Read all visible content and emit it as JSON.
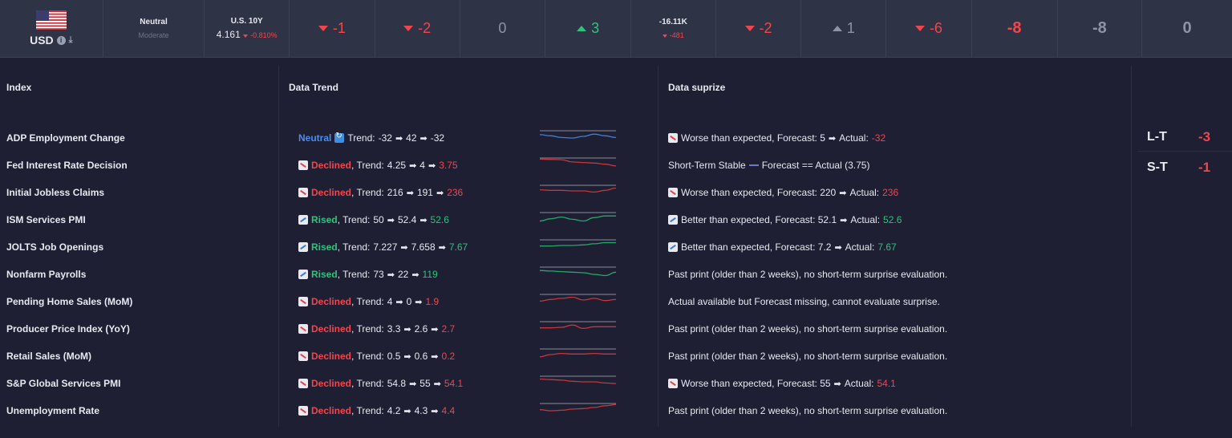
{
  "topbar": {
    "currency": "USD",
    "sentiment": {
      "title": "Neutral",
      "sub": "Moderate"
    },
    "yield": {
      "title": "U.S. 10Y",
      "value": "4.161",
      "change": "-0.810%"
    },
    "scores": [
      {
        "value": "-1",
        "dir": "down"
      },
      {
        "value": "-2",
        "dir": "down"
      },
      {
        "value": "0",
        "dir": "none"
      },
      {
        "value": "3",
        "dir": "up"
      }
    ],
    "cot": {
      "title": "-16.11K",
      "change": "-481"
    },
    "scores2": [
      {
        "value": "-2",
        "dir": "down"
      },
      {
        "value": "1",
        "dir": "up-grey"
      },
      {
        "value": "-6",
        "dir": "down"
      }
    ],
    "totals": [
      {
        "value": "-8",
        "color": "neg"
      },
      {
        "value": "-8",
        "color": "grey"
      },
      {
        "value": "0",
        "color": "grey"
      }
    ]
  },
  "headers": {
    "index": "Index",
    "trend": "Data Trend",
    "surprise": "Data suprize"
  },
  "side": {
    "lt_label": "L-T",
    "lt_value": "-3",
    "st_label": "S-T",
    "st_value": "-1"
  },
  "rows": [
    {
      "name": "ADP Employment Change",
      "status": "Neutral",
      "kind": "neutral",
      "t1": "-32",
      "t2": "42",
      "t3": "-32",
      "t3color": "white",
      "spark": [
        0.35,
        0.45,
        0.6,
        0.65,
        0.5,
        0.3,
        0.45,
        0.6
      ],
      "sparkColor": "#3f7fd6",
      "surprise": {
        "type": "down",
        "text": "Worse than expected, Forecast: 5",
        "actualLabel": "Actual:",
        "actual": "-32",
        "actualColor": "neg"
      }
    },
    {
      "name": "Fed Interest Rate Decision",
      "status": "Declined",
      "kind": "declined",
      "t1": "4.25",
      "t2": "4",
      "t3": "3.75",
      "t3color": "neg",
      "spark": [
        0.1,
        0.12,
        0.15,
        0.35,
        0.4,
        0.45,
        0.55,
        0.7
      ],
      "sparkColor": "#c8353c",
      "surprise": {
        "type": "stable",
        "text": "Short-Term Stable",
        "extra": "Forecast == Actual (3.75)"
      }
    },
    {
      "name": "Initial Jobless Claims",
      "status": "Declined",
      "kind": "declined",
      "t1": "216",
      "t2": "191",
      "t3": "236",
      "t3color": "neg",
      "spark": [
        0.4,
        0.45,
        0.45,
        0.5,
        0.5,
        0.6,
        0.45,
        0.25
      ],
      "sparkColor": "#c8353c",
      "surprise": {
        "type": "down",
        "text": "Worse than expected, Forecast: 220",
        "actualLabel": "Actual:",
        "actual": "236",
        "actualColor": "neg"
      }
    },
    {
      "name": "ISM Services PMI",
      "status": "Rised",
      "kind": "rised",
      "t1": "50",
      "t2": "52.4",
      "t3": "52.6",
      "t3color": "pos",
      "spark": [
        0.75,
        0.55,
        0.4,
        0.6,
        0.75,
        0.45,
        0.3,
        0.3
      ],
      "sparkColor": "#27a86a",
      "surprise": {
        "type": "up",
        "text": "Better than expected, Forecast: 52.1",
        "actualLabel": "Actual:",
        "actual": "52.6",
        "actualColor": "pos"
      }
    },
    {
      "name": "JOLTS Job Openings",
      "status": "Rised",
      "kind": "rised",
      "t1": "7.227",
      "t2": "7.658",
      "t3": "7.67",
      "t3color": "pos",
      "spark": [
        0.55,
        0.55,
        0.5,
        0.5,
        0.45,
        0.35,
        0.25,
        0.25
      ],
      "sparkColor": "#27a86a",
      "surprise": {
        "type": "up",
        "text": "Better than expected, Forecast: 7.2",
        "actualLabel": "Actual:",
        "actual": "7.67",
        "actualColor": "pos"
      }
    },
    {
      "name": "Nonfarm Payrolls",
      "status": "Rised",
      "kind": "rised",
      "t1": "73",
      "t2": "22",
      "t3": "119",
      "t3color": "pos",
      "spark": [
        0.3,
        0.35,
        0.4,
        0.45,
        0.5,
        0.65,
        0.75,
        0.45
      ],
      "sparkColor": "#27a86a",
      "surprise": {
        "type": "plain",
        "text": "Past print (older than 2 weeks), no short-term surprise evaluation."
      }
    },
    {
      "name": "Pending Home Sales (MoM)",
      "status": "Declined",
      "kind": "declined",
      "t1": "4",
      "t2": "0",
      "t3": "1.9",
      "t3color": "neg",
      "spark": [
        0.6,
        0.45,
        0.35,
        0.25,
        0.5,
        0.35,
        0.55,
        0.45
      ],
      "sparkColor": "#c8353c",
      "surprise": {
        "type": "plain",
        "text": "Actual available but Forecast missing, cannot evaluate surprise."
      }
    },
    {
      "name": "Producer Price Index (YoY)",
      "status": "Declined",
      "kind": "declined",
      "t1": "3.3",
      "t2": "2.6",
      "t3": "2.7",
      "t3color": "neg",
      "spark": [
        0.55,
        0.55,
        0.5,
        0.3,
        0.6,
        0.45,
        0.45,
        0.45
      ],
      "sparkColor": "#c8353c",
      "surprise": {
        "type": "plain",
        "text": "Past print (older than 2 weeks), no short-term surprise evaluation."
      }
    },
    {
      "name": "Retail Sales (MoM)",
      "status": "Declined",
      "kind": "declined",
      "t1": "0.5",
      "t2": "0.6",
      "t3": "0.2",
      "t3color": "neg",
      "spark": [
        0.7,
        0.5,
        0.4,
        0.45,
        0.45,
        0.4,
        0.45,
        0.45
      ],
      "sparkColor": "#c8353c",
      "surprise": {
        "type": "plain",
        "text": "Past print (older than 2 weeks), no short-term surprise evaluation."
      }
    },
    {
      "name": "S&P Global Services PMI",
      "status": "Declined",
      "kind": "declined",
      "t1": "54.8",
      "t2": "55",
      "t3": "54.1",
      "t3color": "neg",
      "spark": [
        0.25,
        0.3,
        0.35,
        0.45,
        0.5,
        0.5,
        0.6,
        0.65
      ],
      "sparkColor": "#c8353c",
      "surprise": {
        "type": "down",
        "text": "Worse than expected, Forecast: 55",
        "actualLabel": "Actual:",
        "actual": "54.1",
        "actualColor": "neg"
      }
    },
    {
      "name": "Unemployment Rate",
      "status": "Declined",
      "kind": "declined",
      "t1": "4.2",
      "t2": "4.3",
      "t3": "4.4",
      "t3color": "neg",
      "spark": [
        0.55,
        0.65,
        0.6,
        0.5,
        0.45,
        0.35,
        0.2,
        0.1
      ],
      "sparkColor": "#c8353c",
      "surprise": {
        "type": "plain",
        "text": "Past print (older than 2 weeks), no short-term surprise evaluation."
      }
    }
  ],
  "colors": {
    "background": "#1e1f33",
    "topbar": "#2f3346",
    "negative": "#f2454d",
    "positive": "#2fc27c",
    "neutral": "#4b8df0",
    "grey": "#8f93a6"
  }
}
